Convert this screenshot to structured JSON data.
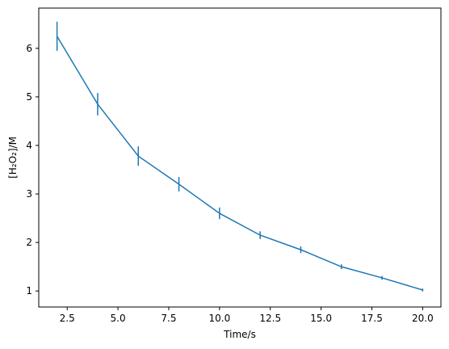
{
  "chart_data": {
    "type": "errorbar-line",
    "x_label": "Time/s",
    "y_label": "[H₂O₂]/M",
    "x": [
      2,
      4,
      6,
      8,
      10,
      12,
      14,
      16,
      18,
      20
    ],
    "series": [
      {
        "color": "#1f77b4",
        "values": [
          6.25,
          4.85,
          3.78,
          3.2,
          2.6,
          2.15,
          1.85,
          1.5,
          1.27,
          1.02
        ],
        "errors": [
          0.3,
          0.23,
          0.2,
          0.15,
          0.12,
          0.08,
          0.07,
          0.05,
          0.04,
          0.03
        ]
      }
    ],
    "xlim": [
      1.1,
      20.9
    ],
    "ylim": [
      0.67,
      6.83
    ],
    "xticks": [
      2.5,
      {
        "value": 5,
        "label": "5.0"
      },
      7.5,
      {
        "value": 10,
        "label": "10.0"
      },
      12.5,
      {
        "value": 15,
        "label": "15.0"
      },
      17.5,
      {
        "value": 20,
        "label": "20.0"
      }
    ],
    "yticks": [
      1,
      2,
      3,
      4,
      5,
      6
    ],
    "grid": false
  }
}
